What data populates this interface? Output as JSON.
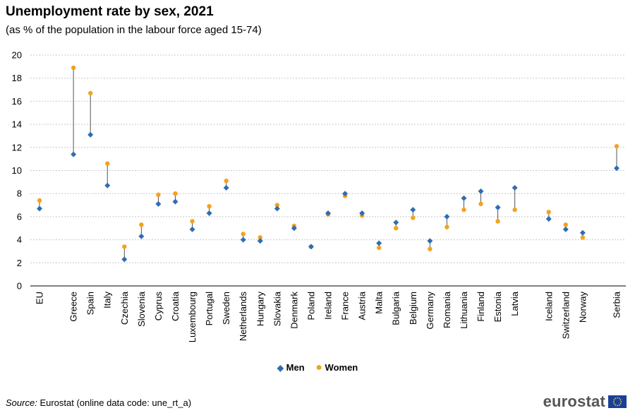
{
  "title": "Unemployment rate by sex, 2021",
  "subtitle": "(as % of the population in the labour force aged 15-74)",
  "source_label": "Source:",
  "source_text": "Eurostat (online data code: une_rt_a)",
  "logo_text": "eurostat",
  "colors": {
    "men": "#2e6db4",
    "women": "#f4a21d",
    "grid": "#c8c8c8",
    "connector": "#555555"
  },
  "chart_data": {
    "type": "scatter",
    "title": "Unemployment rate by sex, 2021",
    "ylim": [
      0,
      20
    ],
    "yticks": [
      0,
      2,
      4,
      6,
      8,
      10,
      12,
      14,
      16,
      18,
      20
    ],
    "grid": true,
    "legend_position": "bottom-center",
    "categories": [
      "EU",
      "Greece",
      "Spain",
      "Italy",
      "Czechia",
      "Slovenia",
      "Cyprus",
      "Croatia",
      "Luxembourg",
      "Portugal",
      "Sweden",
      "Netherlands",
      "Hungary",
      "Slovakia",
      "Denmark",
      "Poland",
      "Ireland",
      "France",
      "Austria",
      "Malta",
      "Bulgaria",
      "Belgium",
      "Germany",
      "Romania",
      "Lithuania",
      "Finland",
      "Estonia",
      "Latvia",
      "Iceland",
      "Switzerland",
      "Norway",
      "Serbia"
    ],
    "group_breaks_after": [
      "EU",
      "Latvia",
      "Norway"
    ],
    "series": [
      {
        "name": "Men",
        "marker": "diamond",
        "values": [
          6.7,
          11.4,
          13.1,
          8.7,
          2.3,
          4.3,
          7.1,
          7.3,
          4.9,
          6.3,
          8.5,
          4.0,
          3.9,
          6.7,
          5.0,
          3.4,
          6.3,
          8.0,
          6.3,
          3.7,
          5.5,
          6.6,
          3.9,
          6.0,
          7.6,
          8.2,
          6.8,
          8.5,
          5.8,
          4.9,
          4.6,
          10.2
        ]
      },
      {
        "name": "Women",
        "marker": "circle",
        "values": [
          7.4,
          18.9,
          16.7,
          10.6,
          3.4,
          5.3,
          7.9,
          8.0,
          5.6,
          6.9,
          9.1,
          4.5,
          4.2,
          7.0,
          5.2,
          3.4,
          6.2,
          7.8,
          6.1,
          3.3,
          5.0,
          5.9,
          3.2,
          5.1,
          6.6,
          7.1,
          5.6,
          6.6,
          6.4,
          5.3,
          4.2,
          12.1
        ]
      }
    ]
  }
}
